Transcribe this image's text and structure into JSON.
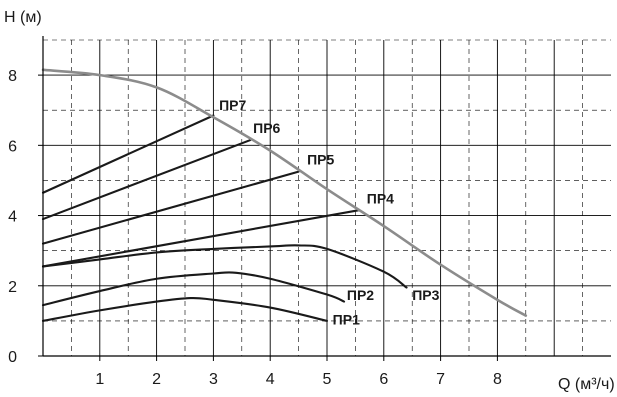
{
  "chart_data": {
    "type": "line",
    "title": "",
    "xlabel": "Q (м³/ч)",
    "ylabel": "H (м)",
    "xlim": [
      0,
      10
    ],
    "ylim": [
      0,
      9
    ],
    "x_ticks": [
      1,
      2,
      3,
      4,
      5,
      6,
      7,
      8
    ],
    "y_ticks": [
      0,
      2,
      4,
      6,
      8
    ],
    "grid": {
      "major": "solid",
      "minor": "dashed",
      "x_minor_step": 0.5,
      "y_minor_step": 1
    },
    "legend": "none",
    "colors": {
      "limit_curve": "#8c8c8c",
      "series": "#1a1a1a",
      "axis": "#000000",
      "grid": "#000000"
    },
    "limit_curve": {
      "name": "",
      "points": [
        [
          0,
          8.15
        ],
        [
          1,
          8.0
        ],
        [
          2,
          7.65
        ],
        [
          3,
          6.8
        ],
        [
          4,
          5.85
        ],
        [
          5,
          4.75
        ],
        [
          6,
          3.7
        ],
        [
          7,
          2.6
        ],
        [
          8,
          1.6
        ],
        [
          8.5,
          1.15
        ]
      ]
    },
    "series": [
      {
        "name": "ПР1",
        "label_at": [
          5.1,
          0.9
        ],
        "points": [
          [
            0,
            1.0
          ],
          [
            1,
            1.3
          ],
          [
            2,
            1.55
          ],
          [
            2.6,
            1.65
          ],
          [
            3,
            1.6
          ],
          [
            4,
            1.38
          ],
          [
            5,
            1.0
          ]
        ]
      },
      {
        "name": "ПР2",
        "label_at": [
          5.35,
          1.6
        ],
        "points": [
          [
            0,
            1.45
          ],
          [
            1,
            1.85
          ],
          [
            2,
            2.2
          ],
          [
            3,
            2.35
          ],
          [
            3.4,
            2.37
          ],
          [
            4,
            2.2
          ],
          [
            5,
            1.75
          ],
          [
            5.3,
            1.55
          ]
        ]
      },
      {
        "name": "ПР3",
        "label_at": [
          6.5,
          1.6
        ],
        "points": [
          [
            0,
            2.55
          ],
          [
            1,
            2.75
          ],
          [
            2,
            2.95
          ],
          [
            3,
            3.05
          ],
          [
            4,
            3.12
          ],
          [
            4.5,
            3.15
          ],
          [
            5,
            3.05
          ],
          [
            6,
            2.4
          ],
          [
            6.4,
            1.95
          ]
        ]
      },
      {
        "name": "ПР4",
        "label_at": [
          5.7,
          4.35
        ],
        "points": [
          [
            0,
            2.55
          ],
          [
            5.55,
            4.15
          ]
        ]
      },
      {
        "name": "ПР5",
        "label_at": [
          4.65,
          5.45
        ],
        "points": [
          [
            0,
            3.2
          ],
          [
            4.5,
            5.25
          ]
        ]
      },
      {
        "name": "ПР6",
        "label_at": [
          3.7,
          6.35
        ],
        "points": [
          [
            0,
            3.9
          ],
          [
            3.65,
            6.15
          ]
        ]
      },
      {
        "name": "ПР7",
        "label_at": [
          3.1,
          7.0
        ],
        "points": [
          [
            0,
            4.65
          ],
          [
            3.0,
            6.85
          ]
        ]
      }
    ]
  }
}
